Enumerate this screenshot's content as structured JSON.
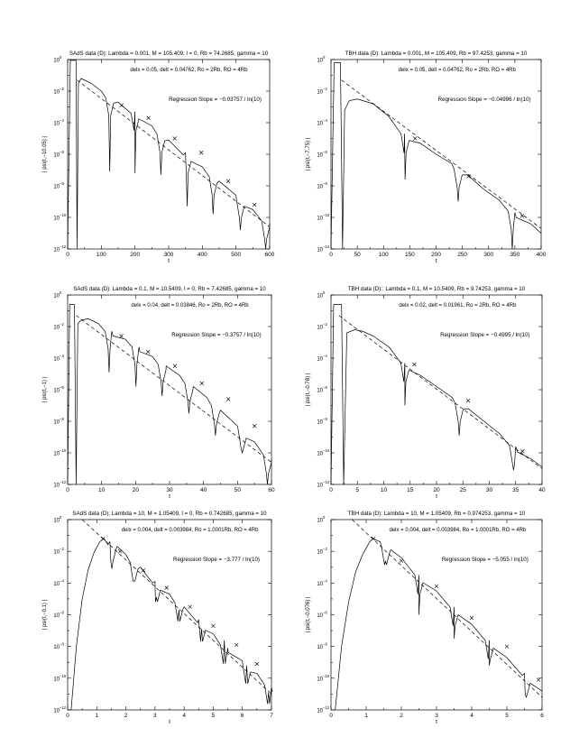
{
  "chart_data": [
    {
      "type": "line",
      "title": "SAdS data (D): Lambda = 0.001, M = 105.409, l = 0, Rb = 74.2685, gamma = 10",
      "params": "delx = 0.05, delt = 0.04762, Ro = 2Rb, RO = 4Rb",
      "slope_label": "Regression Slope = −0.03757 / ln(10)",
      "xlabel": "t",
      "ylabel": "| psi(t,−10.05) |",
      "xlim": [
        0,
        600
      ],
      "ylim_exp": [
        -12,
        0
      ],
      "log_y": true,
      "xticks": [
        0,
        100,
        200,
        300,
        400,
        500,
        600
      ],
      "xtick_labels": [
        "0",
        "100",
        "200",
        "300",
        "400",
        "500",
        "600"
      ],
      "yticks_exp": [
        0,
        -2,
        -4,
        -6,
        -8,
        -10,
        -12
      ],
      "yticks_labels": [
        "10",
        "10",
        "10",
        "10",
        "10",
        "10",
        "10"
      ],
      "yticks_sup": [
        "0",
        "−2",
        "−4",
        "−6",
        "−8",
        "−10",
        "−12"
      ],
      "series": [
        {
          "kind": "envelope",
          "x": [
            0,
            8,
            16,
            25,
            28,
            32,
            40,
            50,
            70,
            100,
            150,
            200,
            250,
            300,
            350,
            400,
            450,
            500,
            550,
            600
          ],
          "logy": [
            -12,
            -0.05,
            -0.05,
            -0.05,
            -12,
            -1.5,
            -1.2,
            -1.3,
            -1.5,
            -2.0,
            -2.7,
            -3.3,
            -4.2,
            -5.1,
            -5.9,
            -6.8,
            -7.7,
            -8.6,
            -9.5,
            -10.4
          ]
        },
        {
          "kind": "zeros",
          "x": [
            125,
            200,
            277,
            355,
            432,
            513,
            588
          ],
          "depth": [
            -7.1,
            -7.2,
            -7.3,
            -9.3,
            -9.8,
            -10.8,
            -12
          ]
        },
        {
          "kind": "regression",
          "x": [
            28,
            600
          ],
          "logy": [
            -1.3,
            -10.6
          ]
        },
        {
          "kind": "points",
          "x": [
            160,
            240,
            318,
            397,
            477,
            555
          ],
          "logy": [
            -2.9,
            -3.7,
            -5.0,
            -5.9,
            -7.7,
            -9.2
          ]
        }
      ]
    },
    {
      "type": "line",
      "title": "TBH data (D): Lambda = 0.001, M = 105.409, Rb = 97.4253, gamma = 10",
      "params": "delx = 0.05, delt = 0.04762, Ro = 2Rb, RO = 4Rb",
      "slope_label": "Regression Slope = −0.04996 / ln(10)",
      "xlabel": "t",
      "ylabel": "| psi(t,−7.75) |",
      "xlim": [
        0,
        400
      ],
      "ylim_exp": [
        -12,
        0
      ],
      "log_y": true,
      "xticks": [
        0,
        50,
        100,
        150,
        200,
        250,
        300,
        350,
        400
      ],
      "xtick_labels": [
        "0",
        "50",
        "100",
        "150",
        "200",
        "250",
        "300",
        "350",
        "400"
      ],
      "yticks_exp": [
        0,
        -2,
        -4,
        -6,
        -8,
        -10,
        -12
      ],
      "yticks_labels": [
        "10",
        "10",
        "10",
        "10",
        "10",
        "10",
        "10"
      ],
      "yticks_sup": [
        "0",
        "−2",
        "−4",
        "−6",
        "−8",
        "−10",
        "−12"
      ],
      "series": [
        {
          "kind": "envelope",
          "x": [
            0,
            6,
            12,
            18,
            22,
            26,
            35,
            50,
            80,
            110,
            140,
            170,
            200,
            230,
            260,
            290,
            320,
            350,
            380,
            400
          ],
          "logy": [
            -12,
            -0.2,
            -0.2,
            -0.2,
            -12,
            -3.2,
            -2.6,
            -2.5,
            -2.8,
            -3.6,
            -4.7,
            -5.3,
            -6.0,
            -6.6,
            -7.3,
            -8.2,
            -8.9,
            -9.7,
            -10.4,
            -11.0
          ]
        },
        {
          "kind": "zeros",
          "x": [
            141,
            242,
            345
          ],
          "depth": [
            -7.6,
            -9.0,
            -12
          ]
        },
        {
          "kind": "regression",
          "x": [
            20,
            400
          ],
          "logy": [
            -1.3,
            -10.7
          ]
        },
        {
          "kind": "points",
          "x": [
            160,
            262,
            364
          ],
          "logy": [
            -5.0,
            -7.4,
            -9.9
          ]
        }
      ]
    },
    {
      "type": "line",
      "title": "SAdS data (D): Lambda = 0.1, M = 10.5409, l = 0, Rb = 7.42685, gamma = 10",
      "params": "delx = 0.04, delt = 0.03846, Ro = 2Rb, RO = 4Rb",
      "slope_label": "Regression Slope = −0.3757 / ln(10)",
      "xlabel": "t",
      "ylabel": "| psi(t,−1) |",
      "xlim": [
        0,
        60
      ],
      "ylim_exp": [
        -12,
        0
      ],
      "log_y": true,
      "xticks": [
        0,
        10,
        20,
        30,
        40,
        50,
        60
      ],
      "xtick_labels": [
        "0",
        "10",
        "20",
        "30",
        "40",
        "50",
        "60"
      ],
      "yticks_exp": [
        0,
        -2,
        -4,
        -6,
        -8,
        -10,
        -12
      ],
      "yticks_labels": [
        "10",
        "10",
        "10",
        "10",
        "10",
        "10",
        "10"
      ],
      "yticks_sup": [
        "0",
        "−2",
        "−4",
        "−6",
        "−8",
        "−10",
        "−12"
      ],
      "series": [
        {
          "kind": "envelope",
          "x": [
            0,
            0.6,
            1.2,
            2.0,
            2.5,
            3.0,
            4.0,
            6,
            9,
            13,
            17,
            21,
            25,
            29,
            33,
            37,
            41,
            45,
            50,
            55,
            60
          ],
          "logy": [
            -12,
            -0.6,
            -0.6,
            -0.6,
            -12,
            -1.8,
            -1.6,
            -1.5,
            -1.8,
            -2.3,
            -2.8,
            -3.3,
            -3.9,
            -4.5,
            -5.1,
            -5.8,
            -6.5,
            -7.3,
            -8.3,
            -9.3,
            -10.4
          ]
        },
        {
          "kind": "zeros",
          "x": [
            12.2,
            20.1,
            27.8,
            35.7,
            43.5,
            51.4,
            58.8
          ],
          "depth": [
            -4.9,
            -5.8,
            -6.4,
            -7.5,
            -8.9,
            -10.0,
            -12
          ]
        },
        {
          "kind": "regression",
          "x": [
            2.5,
            60
          ],
          "logy": [
            -1.3,
            -10.6
          ]
        },
        {
          "kind": "points",
          "x": [
            15.8,
            23.7,
            31.6,
            39.5,
            47.3,
            55.0
          ],
          "logy": [
            -2.6,
            -3.6,
            -4.5,
            -5.6,
            -6.6,
            -8.3
          ]
        }
      ]
    },
    {
      "type": "line",
      "title": "TBH data (D):: Lambda = 0.1, M = 10.5409, Rb = 9.74253, gamma = 10",
      "params": "delx = 0.02, delt = 0.01961, Ro = 2Rb, RO = 4Rb",
      "slope_label": "Regression Slope = −0.4995 / ln(10)",
      "xlabel": "t",
      "ylabel": "| psi(t,−0.78) |",
      "xlim": [
        0,
        40
      ],
      "ylim_exp": [
        -12,
        0
      ],
      "log_y": true,
      "xticks": [
        0,
        5,
        10,
        15,
        20,
        25,
        30,
        35,
        40
      ],
      "xtick_labels": [
        "0",
        "5",
        "10",
        "15",
        "20",
        "25",
        "30",
        "35",
        "40"
      ],
      "yticks_exp": [
        0,
        -2,
        -4,
        -6,
        -8,
        -10,
        -12
      ],
      "yticks_labels": [
        "10",
        "10",
        "10",
        "10",
        "10",
        "10",
        "10"
      ],
      "yticks_sup": [
        "0",
        "−2",
        "−4",
        "−6",
        "−8",
        "−10",
        "−12"
      ],
      "series": [
        {
          "kind": "envelope",
          "x": [
            0,
            0.5,
            1.0,
            2.0,
            2.4,
            3.0,
            4.5,
            6,
            8,
            11,
            14,
            17,
            20,
            23,
            26,
            29,
            32,
            35,
            38,
            40
          ],
          "logy": [
            -12,
            -0.6,
            -0.6,
            -0.6,
            -12,
            -2.4,
            -2.2,
            -2.3,
            -2.6,
            -3.3,
            -4.3,
            -5.1,
            -5.8,
            -6.5,
            -7.2,
            -8.0,
            -8.8,
            -9.6,
            -10.4,
            -10.9
          ]
        },
        {
          "kind": "zeros",
          "x": [
            14.0,
            24.3,
            34.6
          ],
          "depth": [
            -7.0,
            -8.9,
            -11.1
          ]
        },
        {
          "kind": "regression",
          "x": [
            1.5,
            40
          ],
          "logy": [
            -1.3,
            -11.0
          ]
        },
        {
          "kind": "points",
          "x": [
            15.8,
            26.0,
            36.3
          ],
          "logy": [
            -4.4,
            -6.7,
            -9.9
          ]
        }
      ]
    },
    {
      "type": "line",
      "title": "SAdS data (D): Lambda = 10, M = 1.05409, l = 0, Rb = 0.742685, gamma = 10",
      "params": "delx = 0.004, delt = 0.003984, Ro = 1.0001Rb, RO = 4Rb",
      "slope_label": "Regression Slope = −3.777 / ln(10)",
      "xlabel": "t",
      "ylabel": "| psi(t,−0.1) |",
      "xlim": [
        0,
        7
      ],
      "ylim_exp": [
        -12,
        0
      ],
      "log_y": true,
      "xticks": [
        0,
        1,
        2,
        3,
        4,
        5,
        6,
        7
      ],
      "xtick_labels": [
        "0",
        "1",
        "2",
        "3",
        "4",
        "5",
        "6",
        "7"
      ],
      "yticks_exp": [
        0,
        -2,
        -4,
        -6,
        -8,
        -10,
        -12
      ],
      "yticks_labels": [
        "10",
        "10",
        "10",
        "10",
        "10",
        "10",
        "10"
      ],
      "yticks_sup": [
        "0",
        "−2",
        "−4",
        "−6",
        "−8",
        "−10",
        "−12"
      ],
      "series": [
        {
          "kind": "envelope",
          "x": [
            0.12,
            0.3,
            0.5,
            0.7,
            0.9,
            1.1,
            1.25,
            1.45,
            1.7,
            2.0,
            2.5,
            3.0,
            3.5,
            4.0,
            4.5,
            5.0,
            5.5,
            6.0,
            6.5,
            7.0
          ],
          "logy": [
            -12,
            -8.0,
            -5.0,
            -3.2,
            -2.1,
            -1.4,
            -1.2,
            -1.4,
            -1.7,
            -2.2,
            -3.0,
            -3.9,
            -4.7,
            -5.5,
            -6.3,
            -7.2,
            -8.1,
            -8.9,
            -9.7,
            -10.6
          ]
        },
        {
          "kind": "zeros",
          "x": [
            1.52,
            2.28,
            3.05,
            3.82,
            4.6,
            5.38,
            6.15,
            6.9
          ],
          "depth": [
            -3.1,
            -3.9,
            -4.9,
            -5.7,
            -6.9,
            -7.6,
            -9.2,
            -10.9
          ]
        },
        {
          "kind": "regression",
          "x": [
            0.5,
            7.0
          ],
          "logy": [
            0,
            -11.0
          ]
        },
        {
          "kind": "points",
          "x": [
            1.22,
            1.8,
            2.6,
            3.4,
            4.2,
            5.0,
            5.8,
            6.5
          ],
          "logy": [
            -1.2,
            -2.0,
            -3.2,
            -4.3,
            -5.5,
            -6.7,
            -7.9,
            -9.1
          ]
        }
      ]
    },
    {
      "type": "line",
      "title": "TBH data (D): Lambda = 10, M = 1.05409, Rb = 0.974253, gamma = 10",
      "params": "delx = 0.004, delt = 0.003984, Ro = 1.0001Rb, RO = 4Rb",
      "slope_label": "Regression Slope = −5.055 / ln(10)",
      "xlabel": "t",
      "ylabel": "| psi(t,−0.076) |",
      "xlim": [
        0,
        6
      ],
      "ylim_exp": [
        -12,
        0
      ],
      "log_y": true,
      "xticks": [
        0,
        1,
        2,
        3,
        4,
        5,
        6
      ],
      "xtick_labels": [
        "0",
        "1",
        "2",
        "3",
        "4",
        "5",
        "6"
      ],
      "yticks_exp": [
        0,
        -2,
        -4,
        -6,
        -8,
        -10,
        -12
      ],
      "yticks_labels": [
        "10",
        "10",
        "10",
        "10",
        "10",
        "10",
        "10"
      ],
      "yticks_sup": [
        "0",
        "−2",
        "−4",
        "−6",
        "−8",
        "−10",
        "−12"
      ],
      "series": [
        {
          "kind": "envelope",
          "x": [
            0.12,
            0.3,
            0.5,
            0.7,
            0.9,
            1.1,
            1.2,
            1.4,
            1.7,
            2.0,
            2.5,
            3.0,
            3.5,
            4.0,
            4.5,
            5.0,
            5.5,
            6.0
          ],
          "logy": [
            -12,
            -8.0,
            -5.2,
            -3.3,
            -2.2,
            -1.4,
            -1.2,
            -1.4,
            -1.9,
            -2.4,
            -3.5,
            -4.5,
            -5.5,
            -6.6,
            -7.6,
            -8.7,
            -9.7,
            -10.8
          ]
        },
        {
          "kind": "zeros",
          "x": [
            1.55,
            2.5,
            3.5,
            4.5,
            5.55
          ],
          "depth": [
            -2.6,
            -6.0,
            -7.5,
            -9.2,
            -11.2
          ]
        },
        {
          "kind": "regression",
          "x": [
            0.6,
            6.0
          ],
          "logy": [
            0,
            -11.2
          ]
        },
        {
          "kind": "points",
          "x": [
            1.2,
            2.0,
            3.0,
            4.0,
            5.0,
            5.9
          ],
          "logy": [
            -1.2,
            -2.6,
            -4.2,
            -6.2,
            -8.0,
            -10.1
          ]
        }
      ]
    }
  ]
}
